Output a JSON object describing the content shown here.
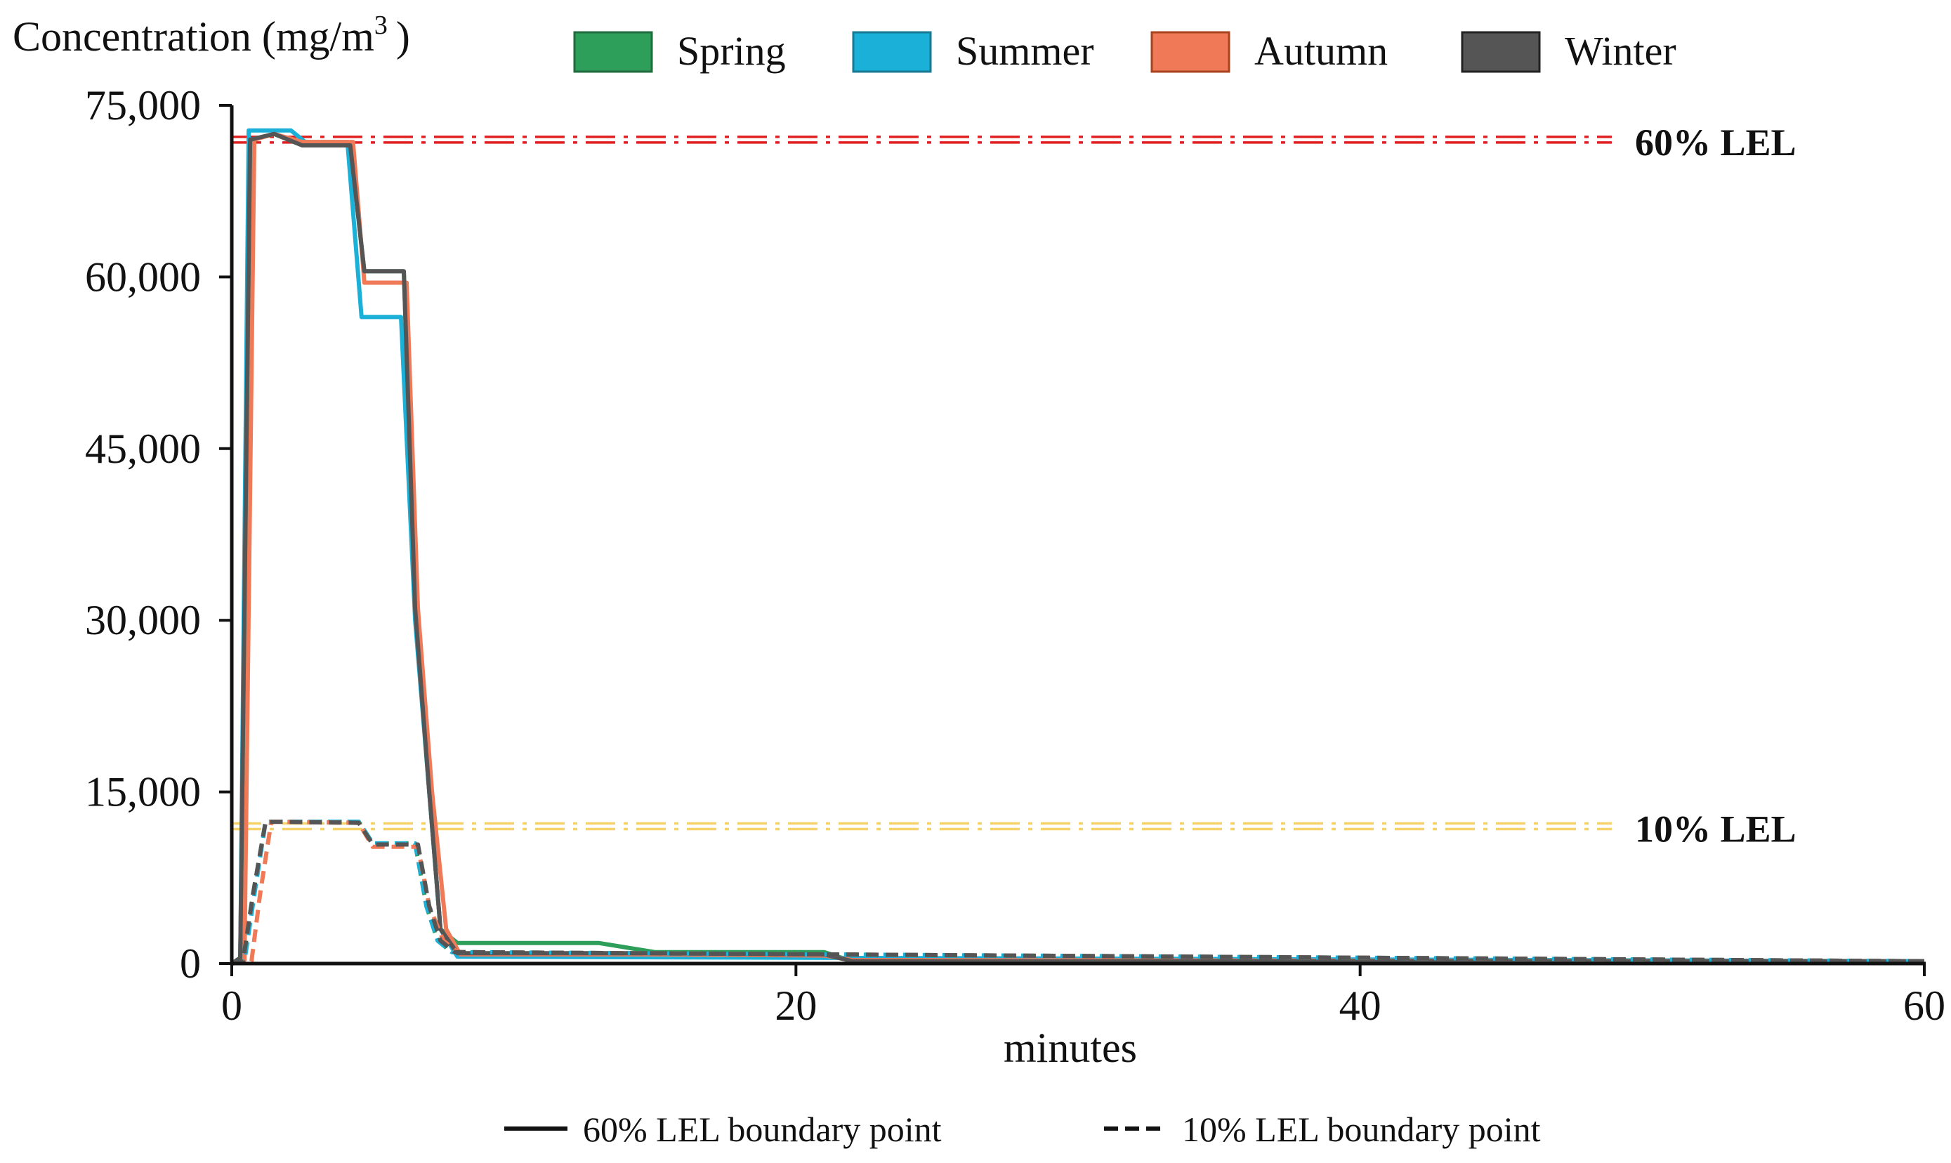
{
  "chart_data": {
    "type": "line",
    "title": "",
    "ylabel_prefix": "Concentration (mg/m",
    "ylabel_sup": "3",
    "ylabel_suffix": ")",
    "xlabel": "minutes",
    "xlim": [
      0,
      60
    ],
    "ylim": [
      0,
      75000
    ],
    "x_ticks": [
      0,
      20,
      40,
      60
    ],
    "x_tick_labels": [
      "0",
      "20",
      "40",
      "60"
    ],
    "y_ticks": [
      0,
      15000,
      30000,
      45000,
      60000,
      75000
    ],
    "y_tick_labels": [
      "0",
      "15,000",
      "30,000",
      "45,000",
      "60,000",
      "75,000"
    ],
    "grid": false,
    "legend": {
      "position": "top",
      "entries": [
        {
          "name": "Spring",
          "color": "#2e9e5b",
          "border": "#1f6b3d"
        },
        {
          "name": "Summer",
          "color": "#1ab0d8",
          "border": "#177a92"
        },
        {
          "name": "Autumn",
          "color": "#f07a57",
          "border": "#a8431f"
        },
        {
          "name": "Winter",
          "color": "#555555",
          "border": "#222222"
        }
      ]
    },
    "line_style_legend": [
      {
        "label": "60% LEL boundary point",
        "style": "solid"
      },
      {
        "label": "10% LEL boundary point",
        "style": "dashed"
      }
    ],
    "reference_lines": [
      {
        "label": "60% LEL",
        "y": 72000,
        "color": "#e02020"
      },
      {
        "label": "10% LEL",
        "y": 12000,
        "color": "#f5d36a"
      }
    ],
    "series": [
      {
        "name": "Spring",
        "style": "solid",
        "color": "#2e9e5b",
        "x": [
          0,
          0.3,
          0.7,
          1.5,
          2.5,
          4.2,
          4.7,
          5.4,
          6.1,
          6.5,
          7.0,
          7.4,
          8.0,
          13.0,
          15.0,
          21.0,
          22.0,
          60
        ],
        "y": [
          0,
          500,
          72000,
          72500,
          71500,
          71500,
          60500,
          60500,
          60500,
          31000,
          15000,
          3000,
          1800,
          1800,
          1000,
          1000,
          200,
          200
        ]
      },
      {
        "name": "Summer",
        "style": "solid",
        "color": "#1ab0d8",
        "x": [
          0,
          0.3,
          0.6,
          1.0,
          2.1,
          2.6,
          4.1,
          4.6,
          5.6,
          6.0,
          6.5,
          7.0,
          7.4,
          8.0,
          60
        ],
        "y": [
          0,
          300,
          72800,
          72800,
          72800,
          71800,
          71800,
          56500,
          56500,
          56500,
          30000,
          15000,
          3000,
          600,
          200
        ]
      },
      {
        "name": "Autumn",
        "style": "solid",
        "color": "#f07a57",
        "x": [
          0,
          0.45,
          0.8,
          1.5,
          2.5,
          4.3,
          4.7,
          5.5,
          6.2,
          6.6,
          7.1,
          7.6,
          8.1,
          15.0,
          21.0,
          22.0,
          60
        ],
        "y": [
          0,
          300,
          72000,
          72500,
          71800,
          71800,
          59500,
          59500,
          59500,
          31000,
          15000,
          3000,
          800,
          800,
          700,
          300,
          200
        ]
      },
      {
        "name": "Winter",
        "style": "solid",
        "color": "#555555",
        "x": [
          0,
          0.3,
          0.65,
          1.5,
          2.5,
          4.2,
          4.7,
          5.4,
          6.1,
          6.5,
          7.0,
          7.4,
          8.0,
          15.0,
          21.0,
          22.0,
          60
        ],
        "y": [
          0,
          500,
          72000,
          72500,
          71500,
          71500,
          60500,
          60500,
          60500,
          31000,
          15000,
          3000,
          900,
          900,
          800,
          200,
          200
        ]
      },
      {
        "name": "Spring",
        "style": "dashed",
        "color": "#2e9e5b",
        "x": [
          0,
          0.4,
          0.75,
          1.2,
          4.5,
          5.0,
          6.5,
          6.9,
          7.3,
          7.8,
          60
        ],
        "y": [
          0,
          200,
          6000,
          12400,
          12400,
          10500,
          10500,
          5000,
          2000,
          1000,
          200
        ]
      },
      {
        "name": "Summer",
        "style": "dashed",
        "color": "#1ab0d8",
        "x": [
          0,
          0.45,
          0.8,
          1.2,
          4.5,
          5.0,
          6.5,
          6.9,
          7.3,
          7.8,
          60
        ],
        "y": [
          0,
          200,
          6000,
          12400,
          12400,
          10500,
          10500,
          5000,
          2000,
          1000,
          200
        ]
      },
      {
        "name": "Autumn",
        "style": "dashed",
        "color": "#f07a57",
        "x": [
          0,
          0.7,
          1.0,
          1.4,
          4.5,
          5.0,
          6.6,
          7.0,
          7.5,
          8.0,
          60
        ],
        "y": [
          0,
          200,
          6000,
          12400,
          12300,
          10200,
          10200,
          5000,
          2000,
          1000,
          200
        ]
      },
      {
        "name": "Winter",
        "style": "dashed",
        "color": "#555555",
        "x": [
          0,
          0.4,
          0.75,
          1.2,
          4.5,
          5.0,
          6.6,
          7.0,
          7.4,
          7.9,
          60
        ],
        "y": [
          0,
          200,
          6000,
          12400,
          12300,
          10400,
          10400,
          5000,
          2000,
          1000,
          200
        ]
      }
    ]
  }
}
